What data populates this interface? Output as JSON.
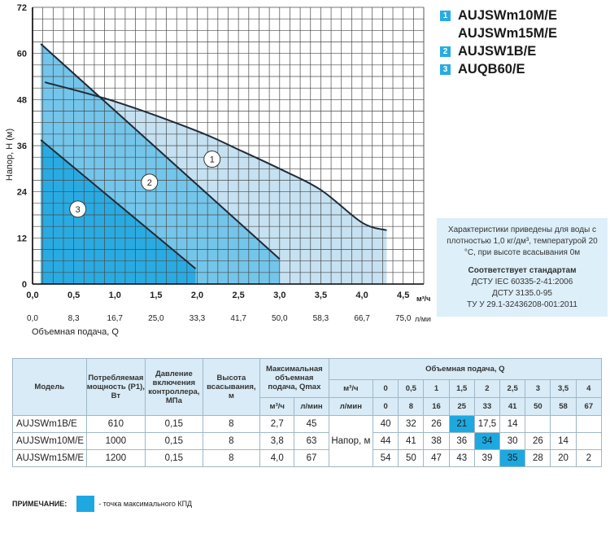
{
  "chart_data": {
    "type": "line",
    "title": "",
    "ylabel": "Напор, H (м)",
    "x_unit_primary": "м³/ч",
    "x_unit_secondary": "л/мин",
    "xlabel_secondary": "Объемная подача, Q",
    "xlim": [
      0,
      4.75
    ],
    "ylim": [
      0,
      72
    ],
    "x_ticks": [
      "0,0",
      "0,5",
      "1,0",
      "1,5",
      "2,0",
      "2,5",
      "3,0",
      "3,5",
      "4,0",
      "4,5"
    ],
    "x_ticks_secondary": [
      "0,0",
      "8,3",
      "16,7",
      "25,0",
      "33,3",
      "41,7",
      "50,0",
      "58,3",
      "66,7",
      "75,0"
    ],
    "y_ticks": [
      "0",
      "12",
      "24",
      "36",
      "48",
      "60",
      "72"
    ],
    "grid": true,
    "series": [
      {
        "label": "1",
        "points": [
          [
            0.15,
            52.5
          ],
          [
            1.0,
            47.5
          ],
          [
            2.0,
            39.8
          ],
          [
            2.5,
            35.0
          ],
          [
            3.0,
            30.0
          ],
          [
            3.5,
            24.5
          ],
          [
            4.0,
            16.0
          ],
          [
            4.3,
            14.0
          ]
        ]
      },
      {
        "label": "2",
        "points": [
          [
            0.1,
            62.5
          ],
          [
            3.0,
            6.5
          ]
        ]
      },
      {
        "label": "3",
        "points": [
          [
            0.1,
            37.5
          ],
          [
            1.98,
            4.0
          ]
        ]
      }
    ],
    "curve_labels": [
      {
        "label": "1",
        "x": 2.18,
        "y": 32.5
      },
      {
        "label": "2",
        "x": 1.42,
        "y": 26.5
      },
      {
        "label": "3",
        "x": 0.55,
        "y": 19.5
      }
    ]
  },
  "legend": [
    {
      "num": "1",
      "lines": [
        "AUJSWm10M/E",
        "AUJSWm15M/E"
      ]
    },
    {
      "num": "2",
      "lines": [
        "AUJSW1B/E"
      ]
    },
    {
      "num": "3",
      "lines": [
        "AUQB60/E"
      ]
    }
  ],
  "info": {
    "para": "Характеристики приведены для воды с плотностью 1,0 кг/дм³, температурой 20 °C, при высоте всасывания 0м",
    "standards_title": "Соответствует стандартам",
    "standards": [
      "ДСТУ IEC 60335-2-41:2006",
      "ДСТУ 3135.0-95",
      "ТУ У 29.1-32436208-001:2011"
    ]
  },
  "table": {
    "headers": {
      "model": "Модель",
      "power": "Потребляемая мощность (P1), Вт",
      "pressure": "Давление включения контроллера, МПа",
      "suction": "Высота всасывания, м",
      "qmax": "Максимальная объемная подача, Qmax",
      "qmax_m3": "м³/ч",
      "qmax_lmin": "л/мин",
      "flow": "Объемная подача, Q",
      "flow_unit_m3": "м³/ч",
      "flow_unit_lmin": "л/мин",
      "head": "Напор, м"
    },
    "flow_m3": [
      "0",
      "0,5",
      "1",
      "1,5",
      "2",
      "2,5",
      "3",
      "3,5",
      "4"
    ],
    "flow_lmin": [
      "0",
      "8",
      "16",
      "25",
      "33",
      "41",
      "50",
      "58",
      "67"
    ],
    "rows": [
      {
        "model": "AUJSWm1B/E",
        "power": "610",
        "pressure": "0,15",
        "suction": "8",
        "qmax_m3": "2,7",
        "qmax_lmin": "45",
        "heads": [
          "40",
          "32",
          "26",
          "21",
          "17,5",
          "14",
          "",
          "",
          ""
        ],
        "hl": 3
      },
      {
        "model": "AUJSWm10M/E",
        "power": "1000",
        "pressure": "0,15",
        "suction": "8",
        "qmax_m3": "3,8",
        "qmax_lmin": "63",
        "heads": [
          "44",
          "41",
          "38",
          "36",
          "34",
          "30",
          "26",
          "14",
          ""
        ],
        "hl": 4
      },
      {
        "model": "AUJSWm15M/E",
        "power": "1200",
        "pressure": "0,15",
        "suction": "8",
        "qmax_m3": "4,0",
        "qmax_lmin": "67",
        "heads": [
          "54",
          "50",
          "47",
          "43",
          "39",
          "35",
          "28",
          "20",
          "2"
        ],
        "hl": 5
      }
    ]
  },
  "note": {
    "label": "ПРИМЕЧАНИЕ:",
    "text": "- точка максимального КПД",
    "swatch_color": "#1ea8e0"
  },
  "colors": {
    "area1": "#c6e1f1",
    "area2": "#74c5ea",
    "area3": "#29abe2",
    "curve": "#1f2b38",
    "grid": "#4a4a4a"
  }
}
